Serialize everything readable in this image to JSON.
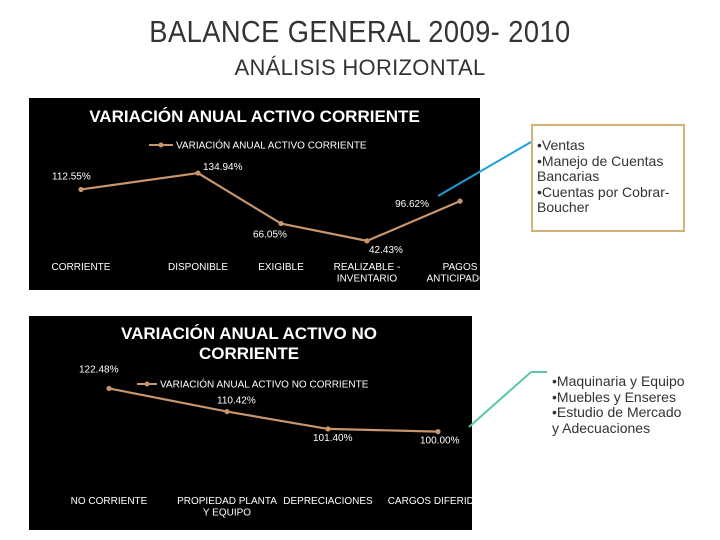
{
  "slide": {
    "title": "BALANCE GENERAL 2009- 2010",
    "subtitle": "ANÁLISIS HORIZONTAL"
  },
  "chart_data": [
    {
      "type": "line",
      "title": "VARIACIÓN ANUAL ACTIVO CORRIENTE",
      "legend": "VARIACIÓN ANUAL ACTIVO CORRIENTE",
      "legend_position": "top",
      "categories": [
        "CORRIENTE",
        "DISPONIBLE",
        "EXIGIBLE",
        "REALIZABLE - INVENTARIO",
        "PAGOS ANTICIPADOS"
      ],
      "category_lines": [
        [
          "CORRIENTE"
        ],
        [
          "DISPONIBLE"
        ],
        [
          "EXIGIBLE"
        ],
        [
          "REALIZABLE -",
          "INVENTARIO"
        ],
        [
          "PAGOS",
          "ANTICIPADOS"
        ]
      ],
      "values": [
        112.55,
        134.94,
        66.05,
        42.43,
        96.62
      ],
      "data_labels": [
        "112.55%",
        "134.94%",
        "66.05%",
        "42.43%",
        "96.62%"
      ],
      "ylim": [
        30,
        150
      ],
      "color": "#c8956c"
    },
    {
      "type": "line",
      "title": "VARIACIÓN ANUAL ACTIVO NO CORRIENTE",
      "legend": "VARIACIÓN ANUAL ACTIVO NO CORRIENTE",
      "legend_position": "top",
      "categories": [
        "NO CORRIENTE",
        "PROPIEDAD PLANTA Y EQUIPO",
        "DEPRECIACIONES",
        "CARGOS DIFERIDOS"
      ],
      "category_lines": [
        [
          "NO CORRIENTE"
        ],
        [
          "PROPIEDAD PLANTA",
          "Y EQUIPO"
        ],
        [
          "DEPRECIACIONES"
        ],
        [
          "CARGOS DIFERIDOS"
        ]
      ],
      "values": [
        122.48,
        110.42,
        101.4,
        100.0
      ],
      "data_labels": [
        "122.48%",
        "110.42%",
        "101.40%",
        "100.00%"
      ],
      "ylim": [
        80,
        130
      ],
      "color": "#c8956c"
    }
  ],
  "notes_corriente": [
    "•Ventas",
    "•Manejo de Cuentas",
    "Bancarias",
    "•Cuentas por Cobrar-",
    "Boucher"
  ],
  "notes_no_corriente": [
    "•Maquinaria y Equipo",
    "•Muebles y Enseres",
    "•Estudio de Mercado",
    "y Adecuaciones"
  ],
  "connector_color": "#1a9fd8",
  "connector_color_2": "#5cc6a6"
}
